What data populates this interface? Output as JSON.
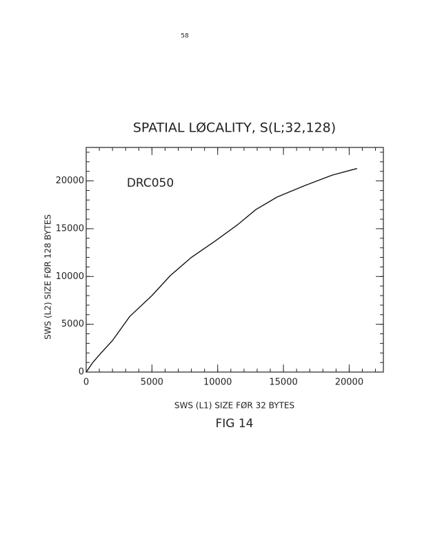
{
  "page_number": "58",
  "caption": "FIG 14",
  "chart_data": {
    "type": "line",
    "title": "SPATIAL LØCALITY, S(L;32,128)",
    "annotation": "DRC050",
    "xlabel": "SWS (L1) SIZE FØR 32 BYTES",
    "ylabel": "SWS (L2) SIZE FØR 128 BYTES",
    "x": [
      0,
      500,
      1000,
      2000,
      3300,
      5000,
      6400,
      8000,
      9800,
      11500,
      12900,
      14500,
      16600,
      18700,
      20600
    ],
    "series": [
      {
        "name": "DRC050",
        "color": "#111111",
        "values": [
          0,
          1000,
          1800,
          3300,
          5800,
          8000,
          10100,
          12000,
          13700,
          15400,
          17000,
          18300,
          19500,
          20600,
          21300
        ]
      }
    ],
    "xlim": [
      0,
      22600
    ],
    "ylim": [
      0,
      23500
    ],
    "xticks": [
      0,
      5000,
      10000,
      15000,
      20000
    ],
    "yticks": [
      0,
      5000,
      10000,
      15000,
      20000
    ],
    "minor_step": 1000,
    "grid": false
  }
}
